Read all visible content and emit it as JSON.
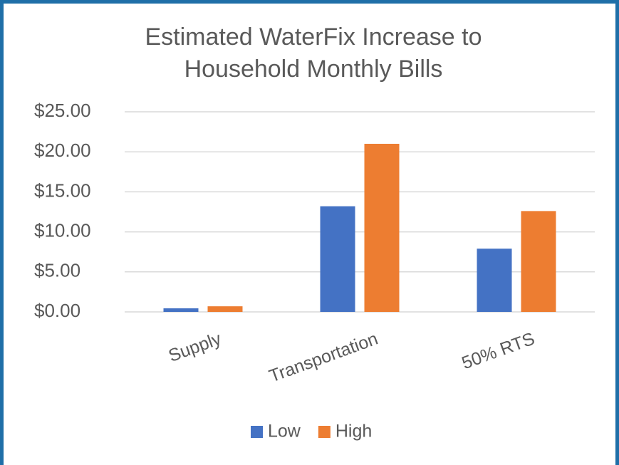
{
  "chart_data": {
    "type": "bar",
    "title": "Estimated WaterFix Increase to Household Monthly Bills",
    "categories": [
      "Supply",
      "Transportation",
      "50% RTS"
    ],
    "series": [
      {
        "name": "Low",
        "color": "#4472c4",
        "values": [
          0.45,
          13.2,
          7.9
        ]
      },
      {
        "name": "High",
        "color": "#ed7d31",
        "values": [
          0.7,
          21.0,
          12.6
        ]
      }
    ],
    "ylim": [
      0,
      25
    ],
    "yticks": [
      {
        "value": 0,
        "label": "$0.00"
      },
      {
        "value": 5,
        "label": "$5.00"
      },
      {
        "value": 10,
        "label": "$10.00"
      },
      {
        "value": 15,
        "label": "$15.00"
      },
      {
        "value": 20,
        "label": "$20.00"
      },
      {
        "value": 25,
        "label": "$25.00"
      }
    ],
    "grid": true,
    "legend": "bottom"
  }
}
